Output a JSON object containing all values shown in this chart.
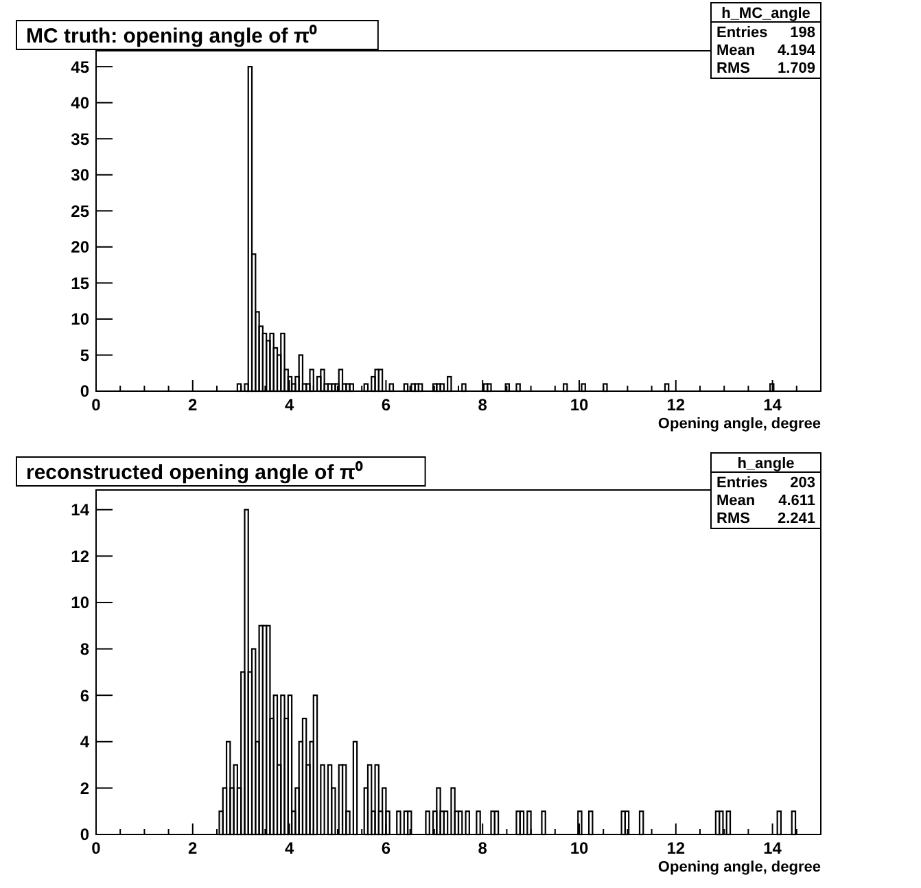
{
  "chart_data": [
    {
      "type": "histogram",
      "title": "MC truth: opening angle of π⁰",
      "xlabel": "Opening angle, degree",
      "color": "#000000",
      "annotations": [
        "h_MC_angle",
        "Entries 198",
        "Mean 4.194",
        "RMS 1.709"
      ],
      "xlim": [
        0,
        15
      ],
      "ylim": [
        0,
        47.2
      ],
      "xticks": [
        0,
        {
          "value": 0.5,
          "label": null
        },
        2,
        {
          "value": 1,
          "label": null
        },
        {
          "value": 1.5,
          "label": null
        },
        {
          "value": 2.5,
          "label": null
        },
        {
          "value": 3,
          "label": null
        },
        {
          "value": 3.5,
          "label": null
        },
        4,
        {
          "value": 4.5,
          "label": null
        },
        {
          "value": 5,
          "label": null
        },
        {
          "value": 5.5,
          "label": null
        },
        6,
        {
          "value": 6.5,
          "label": null
        },
        {
          "value": 7,
          "label": null
        },
        {
          "value": 7.5,
          "label": null
        },
        8,
        {
          "value": 8.5,
          "label": null
        },
        {
          "value": 9,
          "label": null
        },
        {
          "value": 9.5,
          "label": null
        },
        10,
        {
          "value": 10.5,
          "label": null
        },
        {
          "value": 11,
          "label": null
        },
        {
          "value": 11.5,
          "label": null
        },
        12,
        {
          "value": 12.5,
          "label": null
        },
        {
          "value": 13,
          "label": null
        },
        {
          "value": 13.5,
          "label": null
        },
        14,
        {
          "value": 14.5,
          "label": null
        }
      ],
      "yticks": [
        0,
        5,
        10,
        15,
        20,
        25,
        30,
        35,
        40,
        45
      ],
      "bins": [
        0,
        0.075,
        0.15,
        0.225,
        0.3,
        0.375,
        0.45,
        0.525,
        0.6,
        0.675,
        0.75,
        0.825,
        0.9,
        0.975,
        1.05,
        1.125,
        1.2,
        1.275,
        1.35,
        1.425,
        1.5,
        1.575,
        1.65,
        1.725,
        1.8,
        1.875,
        1.95,
        2.025,
        2.1,
        2.175,
        2.25,
        2.325,
        2.4,
        2.475,
        2.55,
        2.625,
        2.7,
        2.775,
        2.85,
        2.925,
        3,
        3.075,
        3.15,
        3.225,
        3.3,
        3.375,
        3.45,
        3.525,
        3.6,
        3.675,
        3.75,
        3.825,
        3.9,
        3.975,
        4.05,
        4.125,
        4.2,
        4.275,
        4.35,
        4.425,
        4.5,
        4.575,
        4.65,
        4.725,
        4.8,
        4.875,
        4.95,
        5.025,
        5.1,
        5.175,
        5.25,
        5.325,
        5.4,
        5.475,
        5.55,
        5.625,
        5.7,
        5.775,
        5.85,
        5.925,
        6,
        6.075,
        6.15,
        6.225,
        6.3,
        6.375,
        6.45,
        6.525,
        6.6,
        6.675,
        6.75,
        6.825,
        6.9,
        6.975,
        7.05,
        7.125,
        7.2,
        7.275,
        7.35,
        7.425,
        7.5,
        7.575,
        7.65,
        7.725,
        7.8,
        7.875,
        7.95,
        8.025,
        8.1,
        8.175,
        8.25,
        8.325,
        8.4,
        8.475,
        8.55,
        8.625,
        8.7,
        8.775,
        8.85,
        8.925,
        9,
        9.075,
        9.15,
        9.225,
        9.3,
        9.375,
        9.45,
        9.525,
        9.6,
        9.675,
        9.75,
        9.825,
        9.9,
        9.975,
        10.05,
        10.125,
        10.2,
        10.275,
        10.35,
        10.425,
        10.5,
        10.575,
        10.65,
        10.725,
        10.8,
        10.875,
        10.95,
        11.025,
        11.1,
        11.175,
        11.25,
        11.325,
        11.4,
        11.475,
        11.55,
        11.625,
        11.7,
        11.775,
        11.85,
        11.925,
        12,
        12.075,
        12.15,
        12.225,
        12.3,
        12.375,
        12.45,
        12.525,
        12.6,
        12.675,
        12.75,
        12.825,
        12.9,
        12.975,
        13.05,
        13.125,
        13.2,
        13.275,
        13.35,
        13.425,
        13.5,
        13.575,
        13.65,
        13.725,
        13.8,
        13.875,
        13.95,
        14.025,
        14.1,
        14.175,
        14.25,
        14.325,
        14.4,
        14.475,
        14.55,
        14.625,
        14.7,
        14.775,
        14.85,
        14.925,
        15
      ],
      "values": [
        0,
        0,
        0,
        0,
        0,
        0,
        0,
        0,
        0,
        0,
        0,
        0,
        0,
        0,
        0,
        0,
        0,
        0,
        0,
        0,
        0,
        0,
        0,
        0,
        0,
        0,
        0,
        0,
        0,
        0,
        0,
        0,
        0,
        0,
        0,
        0,
        0,
        0,
        0,
        1,
        0,
        1,
        45,
        19,
        11,
        9,
        8,
        7,
        8,
        6,
        5,
        8,
        3,
        2,
        1,
        2,
        5,
        1,
        1,
        3,
        0,
        2,
        3,
        1,
        1,
        1,
        1,
        3,
        1,
        1,
        1,
        0,
        0,
        0,
        1,
        0,
        2,
        3,
        3,
        0,
        0,
        1,
        0,
        0,
        0,
        1,
        0,
        1,
        1,
        1,
        0,
        0,
        0,
        1,
        1,
        1,
        0,
        2,
        0,
        0,
        0,
        1,
        0,
        0,
        0,
        0,
        0,
        1,
        1,
        0,
        0,
        0,
        0,
        1,
        0,
        0,
        1,
        0,
        0,
        0,
        0,
        0,
        0,
        0,
        0,
        0,
        0,
        0,
        0,
        1,
        0,
        0,
        0,
        0,
        1,
        0,
        0,
        0,
        0,
        0,
        1,
        0,
        0,
        0,
        0,
        0,
        0,
        0,
        0,
        0,
        0,
        0,
        0,
        0,
        0,
        0,
        0,
        1,
        0,
        0,
        0,
        0,
        0,
        0,
        0,
        0,
        0,
        0,
        0,
        0,
        0,
        0,
        0,
        0,
        0,
        0,
        0,
        0,
        0,
        0,
        0,
        0,
        0,
        0,
        0,
        0,
        1,
        0,
        0,
        0,
        0,
        0,
        0,
        0,
        0,
        0,
        0,
        0,
        0,
        0
      ]
    },
    {
      "type": "histogram",
      "title": "reconstructed opening angle of π⁰",
      "xlabel": "Opening angle, degree",
      "color": "#000000",
      "annotations": [
        "h_angle",
        "Entries 203",
        "Mean 4.611",
        "RMS 2.241"
      ],
      "xlim": [
        0,
        15
      ],
      "ylim": [
        0,
        14.85
      ],
      "xticks": [
        0,
        {
          "value": 0.5,
          "label": null
        },
        2,
        {
          "value": 1,
          "label": null
        },
        {
          "value": 1.5,
          "label": null
        },
        {
          "value": 2.5,
          "label": null
        },
        {
          "value": 3,
          "label": null
        },
        {
          "value": 3.5,
          "label": null
        },
        4,
        {
          "value": 4.5,
          "label": null
        },
        {
          "value": 5,
          "label": null
        },
        {
          "value": 5.5,
          "label": null
        },
        6,
        {
          "value": 6.5,
          "label": null
        },
        {
          "value": 7,
          "label": null
        },
        {
          "value": 7.5,
          "label": null
        },
        8,
        {
          "value": 8.5,
          "label": null
        },
        {
          "value": 9,
          "label": null
        },
        {
          "value": 9.5,
          "label": null
        },
        10,
        {
          "value": 10.5,
          "label": null
        },
        {
          "value": 11,
          "label": null
        },
        {
          "value": 11.5,
          "label": null
        },
        12,
        {
          "value": 12.5,
          "label": null
        },
        {
          "value": 13,
          "label": null
        },
        {
          "value": 13.5,
          "label": null
        },
        14,
        {
          "value": 14.5,
          "label": null
        }
      ],
      "yticks": [
        0,
        2,
        4,
        6,
        8,
        10,
        12,
        14
      ],
      "bins": [
        0,
        0.075,
        0.15,
        0.225,
        0.3,
        0.375,
        0.45,
        0.525,
        0.6,
        0.675,
        0.75,
        0.825,
        0.9,
        0.975,
        1.05,
        1.125,
        1.2,
        1.275,
        1.35,
        1.425,
        1.5,
        1.575,
        1.65,
        1.725,
        1.8,
        1.875,
        1.95,
        2.025,
        2.1,
        2.175,
        2.25,
        2.325,
        2.4,
        2.475,
        2.55,
        2.625,
        2.7,
        2.775,
        2.85,
        2.925,
        3,
        3.075,
        3.15,
        3.225,
        3.3,
        3.375,
        3.45,
        3.525,
        3.6,
        3.675,
        3.75,
        3.825,
        3.9,
        3.975,
        4.05,
        4.125,
        4.2,
        4.275,
        4.35,
        4.425,
        4.5,
        4.575,
        4.65,
        4.725,
        4.8,
        4.875,
        4.95,
        5.025,
        5.1,
        5.175,
        5.25,
        5.325,
        5.4,
        5.475,
        5.55,
        5.625,
        5.7,
        5.775,
        5.85,
        5.925,
        6,
        6.075,
        6.15,
        6.225,
        6.3,
        6.375,
        6.45,
        6.525,
        6.6,
        6.675,
        6.75,
        6.825,
        6.9,
        6.975,
        7.05,
        7.125,
        7.2,
        7.275,
        7.35,
        7.425,
        7.5,
        7.575,
        7.65,
        7.725,
        7.8,
        7.875,
        7.95,
        8.025,
        8.1,
        8.175,
        8.25,
        8.325,
        8.4,
        8.475,
        8.55,
        8.625,
        8.7,
        8.775,
        8.85,
        8.925,
        9,
        9.075,
        9.15,
        9.225,
        9.3,
        9.375,
        9.45,
        9.525,
        9.6,
        9.675,
        9.75,
        9.825,
        9.9,
        9.975,
        10.05,
        10.125,
        10.2,
        10.275,
        10.35,
        10.425,
        10.5,
        10.575,
        10.65,
        10.725,
        10.8,
        10.875,
        10.95,
        11.025,
        11.1,
        11.175,
        11.25,
        11.325,
        11.4,
        11.475,
        11.55,
        11.625,
        11.7,
        11.775,
        11.85,
        11.925,
        12,
        12.075,
        12.15,
        12.225,
        12.3,
        12.375,
        12.45,
        12.525,
        12.6,
        12.675,
        12.75,
        12.825,
        12.9,
        12.975,
        13.05,
        13.125,
        13.2,
        13.275,
        13.35,
        13.425,
        13.5,
        13.575,
        13.65,
        13.725,
        13.8,
        13.875,
        13.95,
        14.025,
        14.1,
        14.175,
        14.25,
        14.325,
        14.4,
        14.475,
        14.55,
        14.625,
        14.7,
        14.775,
        14.85,
        14.925,
        15
      ],
      "values": [
        0,
        0,
        0,
        0,
        0,
        0,
        0,
        0,
        0,
        0,
        0,
        0,
        0,
        0,
        0,
        0,
        0,
        0,
        0,
        0,
        0,
        0,
        0,
        0,
        0,
        0,
        0,
        0,
        0,
        0,
        0,
        0,
        0,
        0,
        1,
        2,
        4,
        2,
        3,
        2,
        7,
        14,
        7,
        8,
        4,
        9,
        9,
        9,
        5,
        6,
        3,
        6,
        5,
        6,
        1,
        2,
        4,
        5,
        3,
        4,
        6,
        0,
        3,
        0,
        3,
        2,
        0,
        3,
        3,
        1,
        0,
        4,
        0,
        0,
        2,
        3,
        1,
        3,
        1,
        2,
        1,
        0,
        0,
        1,
        0,
        1,
        1,
        0,
        0,
        0,
        0,
        1,
        0,
        1,
        2,
        1,
        1,
        0,
        2,
        1,
        1,
        0,
        1,
        0,
        0,
        1,
        0,
        0,
        0,
        1,
        1,
        0,
        0,
        0,
        0,
        0,
        1,
        1,
        0,
        1,
        0,
        0,
        0,
        1,
        0,
        0,
        0,
        0,
        0,
        0,
        0,
        0,
        0,
        1,
        0,
        0,
        1,
        0,
        0,
        0,
        0,
        0,
        0,
        0,
        0,
        1,
        1,
        0,
        0,
        0,
        1,
        0,
        0,
        0,
        0,
        0,
        0,
        0,
        0,
        0,
        0,
        0,
        0,
        0,
        0,
        0,
        0,
        0,
        0,
        0,
        0,
        1,
        1,
        0,
        1,
        0,
        0,
        0,
        0,
        0,
        0,
        0,
        0,
        0,
        0,
        0,
        0,
        0,
        1,
        0,
        0,
        0,
        1,
        0,
        0,
        0,
        0,
        0,
        0,
        0
      ]
    }
  ]
}
